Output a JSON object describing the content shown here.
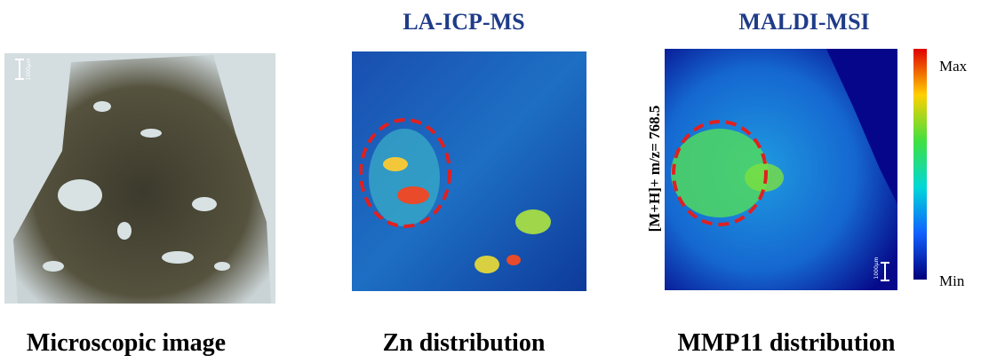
{
  "panels": [
    {
      "title": null,
      "caption": "Microscopic image",
      "scale_label": "1000µm"
    },
    {
      "title": "LA-ICP-MS",
      "caption": "Zn distribution"
    },
    {
      "title": "MALDI-MSI",
      "caption": "MMP11 distribution",
      "axis_label": "[M+H]+ m/z= 768.5",
      "scale_label": "1000µm"
    }
  ],
  "colorbar": {
    "max_label": "Max",
    "min_label": "Min"
  }
}
